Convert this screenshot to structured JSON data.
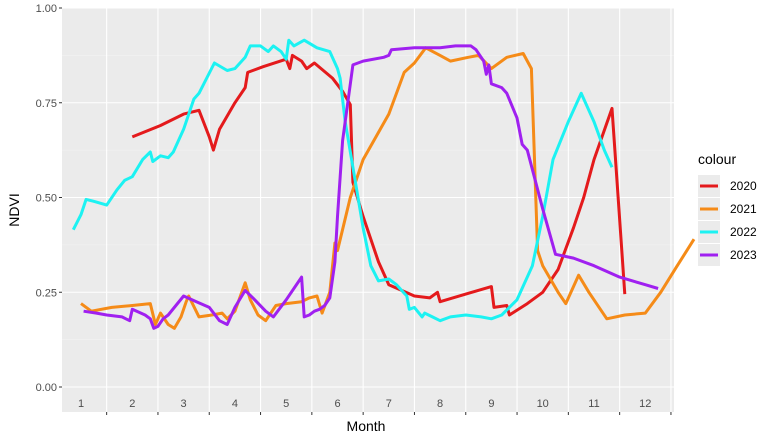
{
  "chart_data": {
    "type": "line",
    "title": "",
    "xlabel": "Month",
    "ylabel": "NDVI",
    "xlim": [
      0.8,
      12.6
    ],
    "ylim": [
      0,
      1
    ],
    "y_ticks": [
      0.0,
      0.25,
      0.5,
      0.75,
      1.0
    ],
    "y_tick_labels": [
      "0.00",
      "0.25",
      "0.50",
      "0.75",
      "1.00"
    ],
    "x_ticks": [
      1,
      2,
      3,
      4,
      5,
      6,
      7,
      8,
      9,
      10,
      11,
      12
    ],
    "x_tick_labels": [
      "1",
      "2",
      "3",
      "4",
      "5",
      "6",
      "7",
      "8",
      "9",
      "10",
      "11",
      "12"
    ],
    "grid": true,
    "legend": {
      "title": "colour",
      "position": "right"
    },
    "series": [
      {
        "name": "2020",
        "color": "#e41a1c",
        "points": [
          [
            2.0,
            0.66
          ],
          [
            2.55,
            0.69
          ],
          [
            3.0,
            0.72
          ],
          [
            3.3,
            0.73
          ],
          [
            3.5,
            0.66
          ],
          [
            3.58,
            0.625
          ],
          [
            3.7,
            0.68
          ],
          [
            4.0,
            0.75
          ],
          [
            4.2,
            0.79
          ],
          [
            4.25,
            0.83
          ],
          [
            4.55,
            0.845
          ],
          [
            5.0,
            0.865
          ],
          [
            5.07,
            0.84
          ],
          [
            5.12,
            0.875
          ],
          [
            5.3,
            0.86
          ],
          [
            5.4,
            0.84
          ],
          [
            5.55,
            0.855
          ],
          [
            5.9,
            0.815
          ],
          [
            6.1,
            0.78
          ],
          [
            6.25,
            0.745
          ],
          [
            6.3,
            0.54
          ],
          [
            6.5,
            0.45
          ],
          [
            6.8,
            0.33
          ],
          [
            7.0,
            0.27
          ],
          [
            7.5,
            0.24
          ],
          [
            7.8,
            0.235
          ],
          [
            7.95,
            0.25
          ],
          [
            8.0,
            0.225
          ],
          [
            8.5,
            0.245
          ],
          [
            9.0,
            0.265
          ],
          [
            9.05,
            0.21
          ],
          [
            9.3,
            0.215
          ],
          [
            9.35,
            0.19
          ],
          [
            9.7,
            0.22
          ],
          [
            10.0,
            0.25
          ],
          [
            10.3,
            0.31
          ],
          [
            10.6,
            0.42
          ],
          [
            10.8,
            0.5
          ],
          [
            11.0,
            0.6
          ],
          [
            11.35,
            0.735
          ],
          [
            11.6,
            0.245
          ]
        ]
      },
      {
        "name": "2021",
        "color": "#f58b18",
        "points": [
          [
            1.0,
            0.22
          ],
          [
            1.2,
            0.2
          ],
          [
            1.6,
            0.21
          ],
          [
            2.0,
            0.215
          ],
          [
            2.35,
            0.22
          ],
          [
            2.45,
            0.165
          ],
          [
            2.55,
            0.195
          ],
          [
            2.7,
            0.165
          ],
          [
            2.82,
            0.155
          ],
          [
            2.95,
            0.185
          ],
          [
            3.05,
            0.225
          ],
          [
            3.1,
            0.24
          ],
          [
            3.3,
            0.185
          ],
          [
            3.55,
            0.19
          ],
          [
            3.75,
            0.195
          ],
          [
            3.85,
            0.18
          ],
          [
            4.0,
            0.2
          ],
          [
            4.2,
            0.275
          ],
          [
            4.3,
            0.23
          ],
          [
            4.45,
            0.19
          ],
          [
            4.6,
            0.175
          ],
          [
            4.8,
            0.215
          ],
          [
            5.0,
            0.22
          ],
          [
            5.3,
            0.225
          ],
          [
            5.45,
            0.235
          ],
          [
            5.6,
            0.24
          ],
          [
            5.7,
            0.195
          ],
          [
            5.85,
            0.25
          ],
          [
            5.95,
            0.38
          ],
          [
            6.0,
            0.36
          ],
          [
            6.25,
            0.5
          ],
          [
            6.5,
            0.6
          ],
          [
            7.0,
            0.72
          ],
          [
            7.3,
            0.83
          ],
          [
            7.5,
            0.855
          ],
          [
            7.72,
            0.895
          ],
          [
            8.0,
            0.875
          ],
          [
            8.2,
            0.86
          ],
          [
            8.55,
            0.87
          ],
          [
            8.75,
            0.875
          ],
          [
            9.0,
            0.84
          ],
          [
            9.3,
            0.87
          ],
          [
            9.62,
            0.88
          ],
          [
            9.78,
            0.84
          ],
          [
            9.9,
            0.36
          ],
          [
            10.0,
            0.32
          ],
          [
            10.3,
            0.25
          ],
          [
            10.45,
            0.22
          ],
          [
            10.7,
            0.295
          ],
          [
            10.9,
            0.25
          ],
          [
            11.25,
            0.18
          ],
          [
            11.6,
            0.19
          ],
          [
            12.0,
            0.195
          ],
          [
            12.3,
            0.25
          ],
          [
            12.6,
            0.315
          ],
          [
            12.95,
            0.39
          ]
        ]
      },
      {
        "name": "2022",
        "color": "#1cf2f2",
        "points": [
          [
            0.85,
            0.415
          ],
          [
            1.0,
            0.455
          ],
          [
            1.1,
            0.495
          ],
          [
            1.25,
            0.49
          ],
          [
            1.5,
            0.48
          ],
          [
            1.7,
            0.52
          ],
          [
            1.85,
            0.545
          ],
          [
            2.0,
            0.555
          ],
          [
            2.2,
            0.6
          ],
          [
            2.35,
            0.62
          ],
          [
            2.4,
            0.595
          ],
          [
            2.55,
            0.61
          ],
          [
            2.7,
            0.605
          ],
          [
            2.8,
            0.62
          ],
          [
            3.0,
            0.68
          ],
          [
            3.2,
            0.76
          ],
          [
            3.3,
            0.775
          ],
          [
            3.6,
            0.855
          ],
          [
            3.85,
            0.835
          ],
          [
            4.0,
            0.84
          ],
          [
            4.2,
            0.87
          ],
          [
            4.3,
            0.9
          ],
          [
            4.5,
            0.9
          ],
          [
            4.65,
            0.885
          ],
          [
            4.75,
            0.9
          ],
          [
            4.9,
            0.885
          ],
          [
            5.0,
            0.865
          ],
          [
            5.05,
            0.915
          ],
          [
            5.15,
            0.9
          ],
          [
            5.35,
            0.915
          ],
          [
            5.6,
            0.895
          ],
          [
            5.85,
            0.885
          ],
          [
            6.0,
            0.84
          ],
          [
            6.05,
            0.815
          ],
          [
            6.15,
            0.7
          ],
          [
            6.3,
            0.58
          ],
          [
            6.5,
            0.42
          ],
          [
            6.65,
            0.32
          ],
          [
            6.8,
            0.28
          ],
          [
            7.0,
            0.285
          ],
          [
            7.15,
            0.27
          ],
          [
            7.35,
            0.24
          ],
          [
            7.4,
            0.205
          ],
          [
            7.5,
            0.21
          ],
          [
            7.65,
            0.185
          ],
          [
            7.7,
            0.195
          ],
          [
            7.85,
            0.185
          ],
          [
            8.0,
            0.175
          ],
          [
            8.2,
            0.185
          ],
          [
            8.5,
            0.19
          ],
          [
            8.8,
            0.185
          ],
          [
            9.0,
            0.18
          ],
          [
            9.2,
            0.19
          ],
          [
            9.5,
            0.23
          ],
          [
            9.8,
            0.32
          ],
          [
            10.0,
            0.45
          ],
          [
            10.2,
            0.6
          ],
          [
            10.5,
            0.7
          ],
          [
            10.75,
            0.775
          ],
          [
            11.0,
            0.7
          ],
          [
            11.2,
            0.625
          ],
          [
            11.35,
            0.58
          ]
        ]
      },
      {
        "name": "2023",
        "color": "#a020f0",
        "points": [
          [
            1.05,
            0.2
          ],
          [
            1.3,
            0.195
          ],
          [
            1.5,
            0.19
          ],
          [
            1.8,
            0.185
          ],
          [
            1.95,
            0.175
          ],
          [
            2.0,
            0.205
          ],
          [
            2.25,
            0.19
          ],
          [
            2.35,
            0.18
          ],
          [
            2.42,
            0.155
          ],
          [
            2.5,
            0.16
          ],
          [
            2.6,
            0.18
          ],
          [
            2.7,
            0.19
          ],
          [
            2.85,
            0.215
          ],
          [
            3.0,
            0.24
          ],
          [
            3.25,
            0.225
          ],
          [
            3.5,
            0.21
          ],
          [
            3.7,
            0.175
          ],
          [
            3.85,
            0.165
          ],
          [
            4.0,
            0.21
          ],
          [
            4.2,
            0.255
          ],
          [
            4.35,
            0.235
          ],
          [
            4.6,
            0.2
          ],
          [
            4.75,
            0.185
          ],
          [
            5.0,
            0.23
          ],
          [
            5.3,
            0.29
          ],
          [
            5.35,
            0.185
          ],
          [
            5.45,
            0.19
          ],
          [
            5.55,
            0.2
          ],
          [
            5.65,
            0.205
          ],
          [
            5.75,
            0.215
          ],
          [
            5.85,
            0.235
          ],
          [
            5.95,
            0.33
          ],
          [
            6.0,
            0.45
          ],
          [
            6.1,
            0.65
          ],
          [
            6.3,
            0.85
          ],
          [
            6.5,
            0.86
          ],
          [
            6.9,
            0.87
          ],
          [
            7.0,
            0.875
          ],
          [
            7.05,
            0.89
          ],
          [
            7.5,
            0.895
          ],
          [
            8.0,
            0.895
          ],
          [
            8.3,
            0.9
          ],
          [
            8.6,
            0.9
          ],
          [
            8.7,
            0.89
          ],
          [
            8.85,
            0.86
          ],
          [
            8.9,
            0.825
          ],
          [
            8.95,
            0.85
          ],
          [
            9.0,
            0.8
          ],
          [
            9.2,
            0.79
          ],
          [
            9.3,
            0.775
          ],
          [
            9.5,
            0.71
          ],
          [
            9.6,
            0.64
          ],
          [
            9.7,
            0.625
          ],
          [
            10.0,
            0.47
          ],
          [
            10.25,
            0.35
          ],
          [
            10.6,
            0.34
          ],
          [
            11.0,
            0.32
          ],
          [
            11.5,
            0.29
          ],
          [
            12.0,
            0.27
          ],
          [
            12.25,
            0.26
          ]
        ]
      }
    ]
  }
}
